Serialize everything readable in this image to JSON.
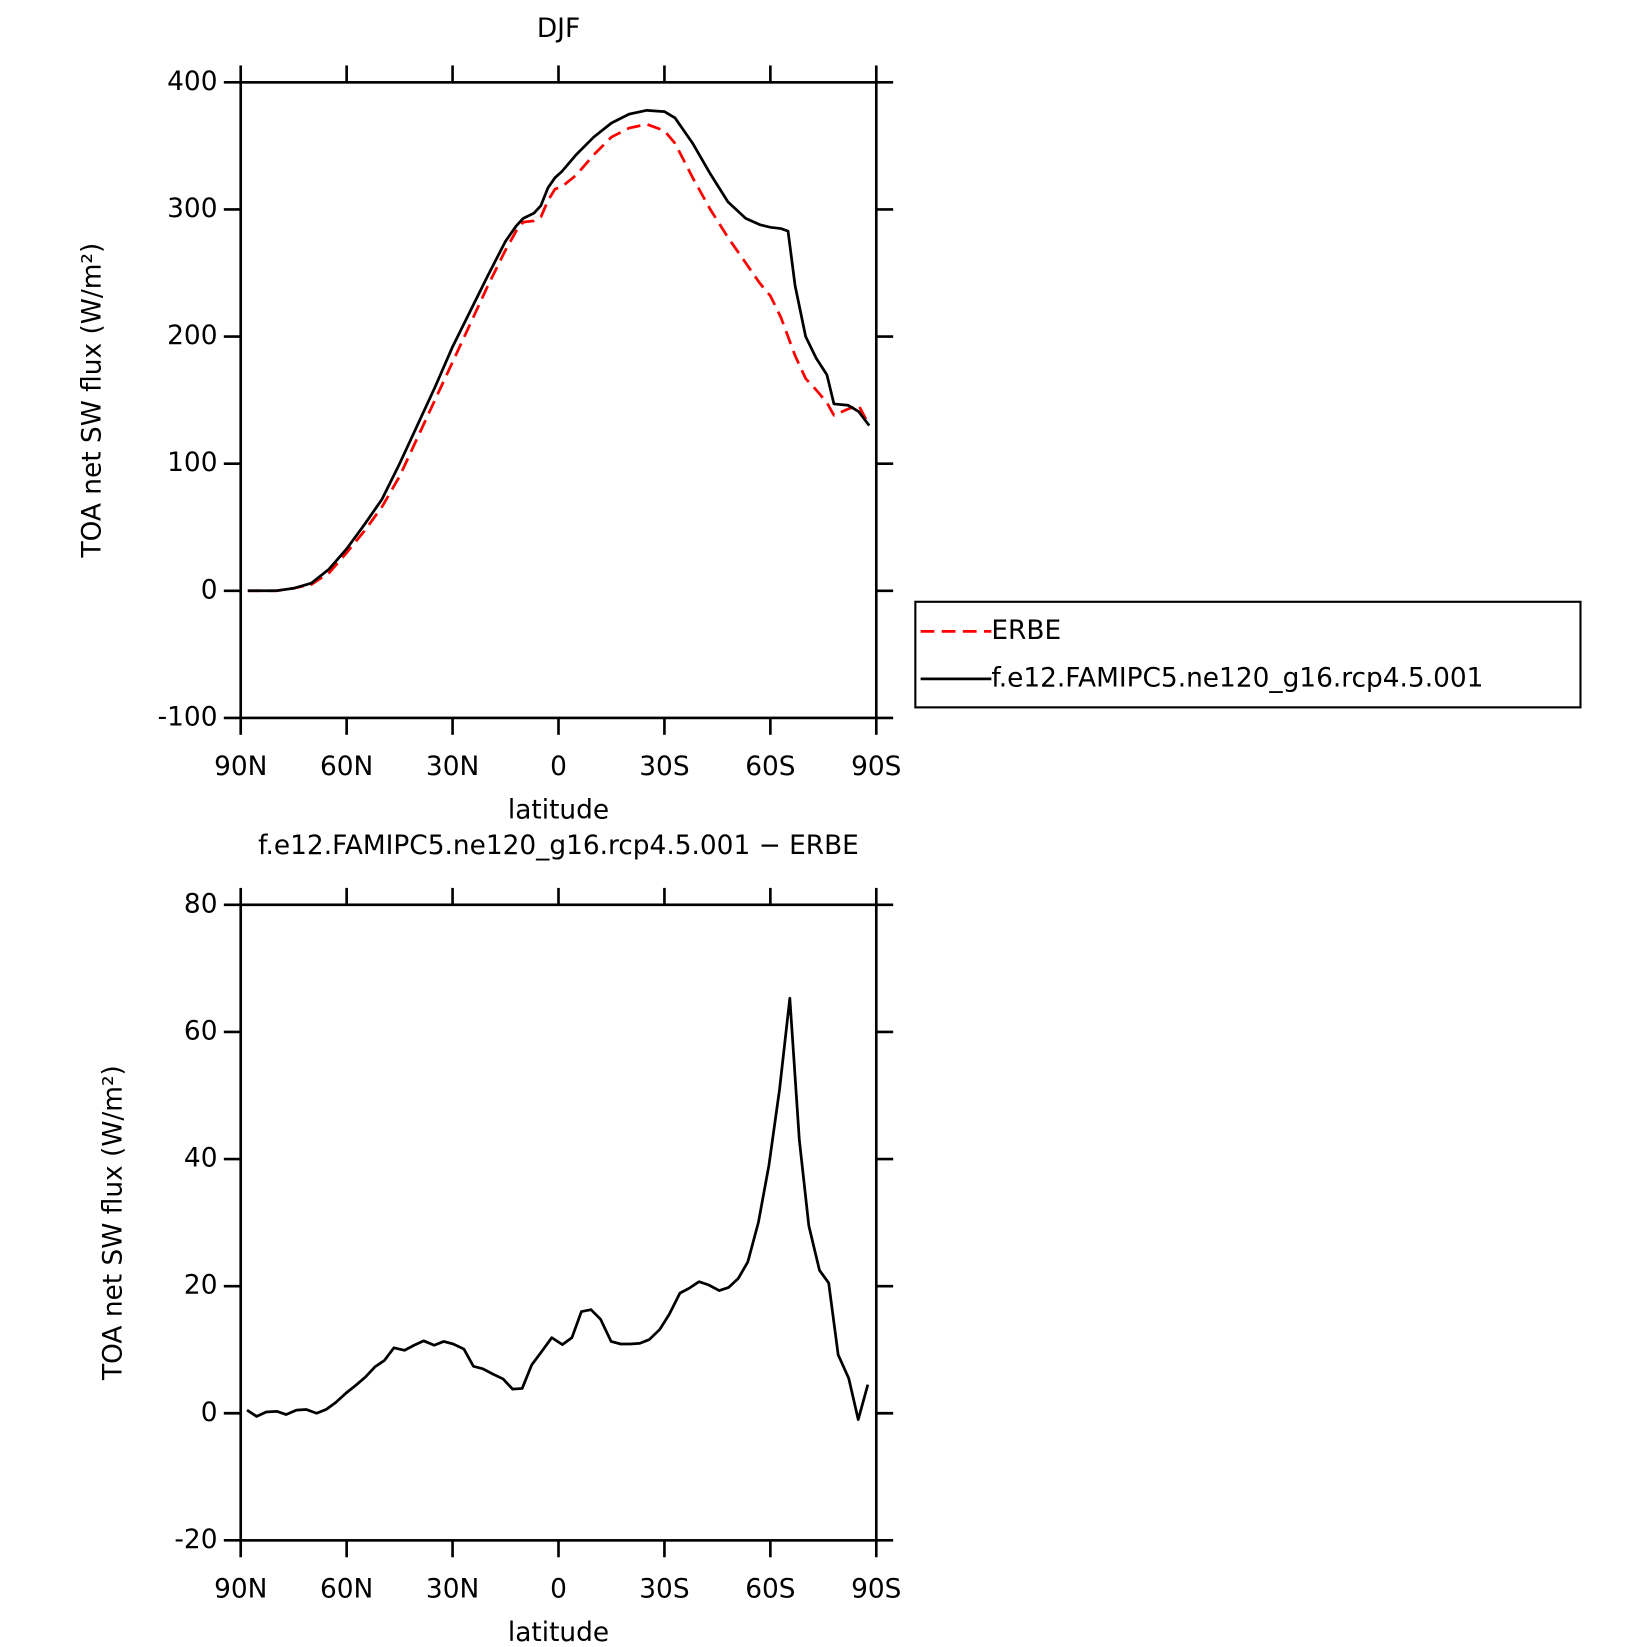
{
  "chart_data": [
    {
      "type": "line",
      "title": "DJF",
      "xlabel": "latitude",
      "ylabel": "TOA net SW flux (W/m²)",
      "xlim": [
        90,
        -90
      ],
      "xticks": [
        {
          "value": 90,
          "label": "90N"
        },
        {
          "value": 60,
          "label": "60N"
        },
        {
          "value": 30,
          "label": "30N"
        },
        0,
        {
          "value": -30,
          "label": "30S"
        },
        {
          "value": -60,
          "label": "60S"
        },
        {
          "value": -90,
          "label": "90S"
        }
      ],
      "ylim": [
        -100,
        400
      ],
      "yticks": [
        -100,
        0,
        100,
        200,
        300,
        400
      ],
      "legend": true,
      "x": [
        88,
        80,
        75,
        70,
        65,
        60,
        55,
        50,
        45,
        40,
        35,
        30,
        25,
        20,
        15,
        12,
        10,
        7,
        5,
        3,
        1,
        -1,
        -5,
        -10,
        -15,
        -20,
        -25,
        -30,
        -33,
        -38,
        -43,
        -48,
        -53,
        -57,
        -60,
        -63,
        -65,
        -67,
        -70,
        -73,
        -76,
        -78,
        -82,
        -85,
        -88
      ],
      "series": [
        {
          "name": "ERBE",
          "color": "#ff0000",
          "dashed": true,
          "values": [
            0,
            0,
            2,
            5,
            14,
            30,
            47,
            66,
            90,
            120,
            150,
            180,
            210,
            240,
            268,
            283,
            290,
            291,
            294,
            307,
            316,
            318,
            327,
            343,
            357,
            364,
            367,
            362,
            352,
            325,
            300,
            278,
            258,
            242,
            232,
            215,
            200,
            185,
            167,
            158,
            148,
            138,
            143,
            146,
            130
          ]
        },
        {
          "name": "f.e12.FAMIPC5.ne120_g16.rcp4.5.001",
          "color": "#000000",
          "dashed": false,
          "values": [
            0,
            0,
            2,
            6,
            17,
            33,
            52,
            72,
            100,
            130,
            160,
            192,
            220,
            248,
            275,
            287,
            293,
            297,
            303,
            317,
            325,
            330,
            343,
            357,
            368,
            375,
            378,
            377,
            372,
            352,
            328,
            306,
            293,
            288,
            286,
            285,
            283,
            240,
            200,
            183,
            170,
            147,
            146,
            141,
            130
          ]
        }
      ]
    },
    {
      "type": "line",
      "title": "f.e12.FAMIPC5.ne120_g16.rcp4.5.001 − ERBE",
      "xlabel": "latitude",
      "ylabel": "TOA net SW flux (W/m²)",
      "xlim": [
        90,
        -90
      ],
      "xticks": [
        {
          "value": 90,
          "label": "90N"
        },
        {
          "value": 60,
          "label": "60N"
        },
        {
          "value": 30,
          "label": "30N"
        },
        0,
        {
          "value": -30,
          "label": "30S"
        },
        {
          "value": -60,
          "label": "60S"
        },
        {
          "value": -90,
          "label": "90S"
        }
      ],
      "ylim": [
        -20,
        80
      ],
      "yticks": [
        -20,
        0,
        20,
        40,
        60,
        80
      ],
      "legend": false,
      "x": [
        88.2,
        85.5,
        82.8,
        79.8,
        77.1,
        74.2,
        71.5,
        68.5,
        65.8,
        63.1,
        60.1,
        57.4,
        54.7,
        52.0,
        49.3,
        46.6,
        43.6,
        40.9,
        38.2,
        35.2,
        32.5,
        29.8,
        26.8,
        24.1,
        21.4,
        18.7,
        15.7,
        13.0,
        10.3,
        7.6,
        4.9,
        1.9,
        -1.1,
        -3.8,
        -6.5,
        -9.2,
        -11.9,
        -14.9,
        -17.6,
        -20.3,
        -23.0,
        -25.7,
        -28.7,
        -31.4,
        -34.4,
        -37.1,
        -39.8,
        -42.5,
        -45.5,
        -48.2,
        -50.9,
        -53.6,
        -56.6,
        -59.6,
        -62.6,
        -65.5,
        -68.2,
        -70.9,
        -73.9,
        -76.5,
        -79.2,
        -82.2,
        -84.9,
        -87.6
      ],
      "series": [
        {
          "color": "#000000",
          "dashed": false,
          "values": [
            0.5,
            -0.5,
            0.2,
            0.3,
            -0.2,
            0.5,
            0.6,
            0,
            0.6,
            1.7,
            3.2,
            4.4,
            5.7,
            7.3,
            8.3,
            10.3,
            9.9,
            10.7,
            11.4,
            10.7,
            11.3,
            10.9,
            10.1,
            7.4,
            7,
            6.2,
            5.4,
            3.8,
            3.9,
            7.6,
            9.6,
            11.9,
            10.8,
            11.9,
            16,
            16.3,
            14.8,
            11.3,
            10.9,
            10.9,
            11,
            11.6,
            13.2,
            15.6,
            18.9,
            19.7,
            20.7,
            20.2,
            19.3,
            19.8,
            21.2,
            23.8,
            30,
            39,
            51,
            65.3,
            43,
            29.5,
            22.5,
            20.5,
            9.2,
            5.5,
            -1,
            4.5
          ]
        }
      ]
    }
  ]
}
